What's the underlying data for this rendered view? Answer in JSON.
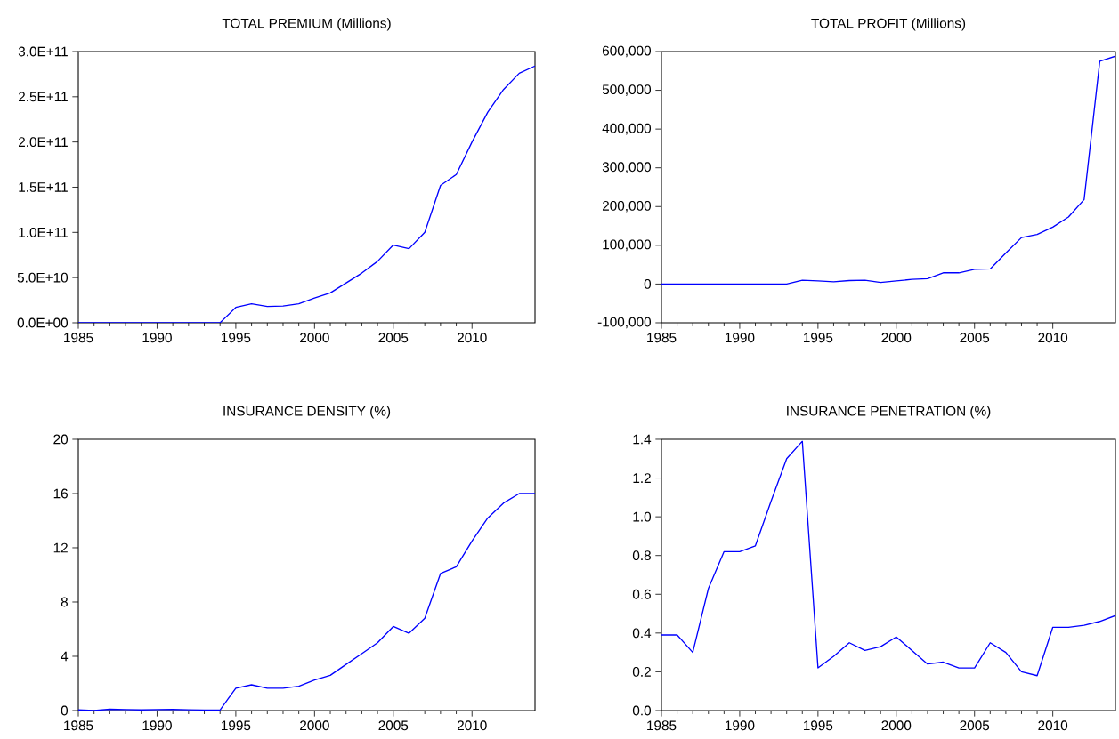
{
  "chart_data": [
    {
      "type": "line",
      "title": "TOTAL PREMIUM (Millions)",
      "color": "#0000ff",
      "x": [
        1985,
        1986,
        1987,
        1988,
        1989,
        1990,
        1991,
        1992,
        1993,
        1994,
        1995,
        1996,
        1997,
        1998,
        1999,
        2000,
        2001,
        2002,
        2003,
        2004,
        2005,
        2006,
        2007,
        2008,
        2009,
        2010,
        2011,
        2012,
        2013,
        2014
      ],
      "values": [
        0,
        0,
        0,
        0,
        0,
        0,
        0,
        0,
        0,
        0,
        17000000000,
        21000000000,
        18000000000,
        18500000000,
        21000000000,
        27500000000,
        33000000000,
        44000000000,
        55000000000,
        68000000000,
        86000000000,
        82000000000,
        100000000000,
        152000000000,
        164000000000,
        200000000000,
        233000000000,
        258000000000,
        276000000000,
        284000000000
      ],
      "xlim": [
        1985,
        2014
      ],
      "ylim": [
        0,
        300000000000
      ],
      "xticks": [
        1985,
        1990,
        1995,
        2000,
        2005,
        2010
      ],
      "yticks": [
        {
          "value": 0,
          "label": "0.0E+00"
        },
        {
          "value": 50000000000,
          "label": "5.0E+10"
        },
        {
          "value": 100000000000,
          "label": "1.0E+11"
        },
        {
          "value": 150000000000,
          "label": "1.5E+11"
        },
        {
          "value": 200000000000,
          "label": "2.0E+11"
        },
        {
          "value": 250000000000,
          "label": "2.5E+11"
        },
        {
          "value": 300000000000,
          "label": "3.0E+11"
        }
      ]
    },
    {
      "type": "line",
      "title": "TOTAL PROFIT (Millions)",
      "color": "#0000ff",
      "x": [
        1985,
        1986,
        1987,
        1988,
        1989,
        1990,
        1991,
        1992,
        1993,
        1994,
        1995,
        1996,
        1997,
        1998,
        1999,
        2000,
        2001,
        2002,
        2003,
        2004,
        2005,
        2006,
        2007,
        2008,
        2009,
        2010,
        2011,
        2012,
        2013,
        2014
      ],
      "values": [
        0,
        0,
        0,
        0,
        0,
        0,
        0,
        0,
        0,
        10000,
        8000,
        6000,
        9000,
        10000,
        4000,
        8000,
        12000,
        14000,
        29000,
        29000,
        38000,
        39000,
        80000,
        120000,
        128000,
        147000,
        173000,
        218000,
        575000,
        588000
      ],
      "xlim": [
        1985,
        2014
      ],
      "ylim": [
        -100000,
        600000
      ],
      "xticks": [
        1985,
        1990,
        1995,
        2000,
        2005,
        2010
      ],
      "yticks": [
        {
          "value": -100000,
          "label": "-100,000"
        },
        0,
        {
          "value": 100000,
          "label": "100,000"
        },
        {
          "value": 200000,
          "label": "200,000"
        },
        {
          "value": 300000,
          "label": "300,000"
        },
        {
          "value": 400000,
          "label": "400,000"
        },
        {
          "value": 500000,
          "label": "500,000"
        },
        {
          "value": 600000,
          "label": "600,000"
        }
      ]
    },
    {
      "type": "line",
      "title": "INSURANCE DENSITY (%)",
      "color": "#0000ff",
      "x": [
        1985,
        1986,
        1987,
        1988,
        1989,
        1990,
        1991,
        1992,
        1993,
        1994,
        1995,
        1996,
        1997,
        1998,
        1999,
        2000,
        2001,
        2002,
        2003,
        2004,
        2005,
        2006,
        2007,
        2008,
        2009,
        2010,
        2011,
        2012,
        2013,
        2014
      ],
      "values": [
        0.05,
        0,
        0.1,
        0.07,
        0.05,
        0.07,
        0.08,
        0.06,
        0.04,
        0.04,
        1.65,
        1.9,
        1.65,
        1.65,
        1.8,
        2.25,
        2.6,
        3.4,
        4.2,
        5.0,
        6.2,
        5.7,
        6.8,
        10.1,
        10.6,
        12.5,
        14.2,
        15.3,
        16.0,
        16.0
      ],
      "xlim": [
        1985,
        2014
      ],
      "ylim": [
        0,
        20
      ],
      "xticks": [
        1985,
        1990,
        1995,
        2000,
        2005,
        2010
      ],
      "yticks": [
        0,
        4,
        8,
        12,
        16,
        20
      ]
    },
    {
      "type": "line",
      "title": "INSURANCE PENETRATION (%)",
      "color": "#0000ff",
      "x": [
        1985,
        1986,
        1987,
        1988,
        1989,
        1990,
        1991,
        1992,
        1993,
        1994,
        1995,
        1996,
        1997,
        1998,
        1999,
        2000,
        2001,
        2002,
        2003,
        2004,
        2005,
        2006,
        2007,
        2008,
        2009,
        2010,
        2011,
        2012,
        2013,
        2014
      ],
      "values": [
        0.39,
        0.39,
        0.3,
        0.63,
        0.82,
        0.82,
        0.85,
        1.08,
        1.3,
        1.39,
        0.22,
        0.28,
        0.35,
        0.31,
        0.33,
        0.38,
        0.31,
        0.24,
        0.25,
        0.22,
        0.22,
        0.35,
        0.3,
        0.2,
        0.18,
        0.43,
        0.43,
        0.44,
        0.46,
        0.49
      ],
      "xlim": [
        1985,
        2014
      ],
      "ylim": [
        0,
        1.4
      ],
      "xticks": [
        1985,
        1990,
        1995,
        2000,
        2005,
        2010
      ],
      "yticks": [
        {
          "value": 0,
          "label": "0.0"
        },
        {
          "value": 0.2,
          "label": "0.2"
        },
        {
          "value": 0.4,
          "label": "0.4"
        },
        {
          "value": 0.6,
          "label": "0.6"
        },
        {
          "value": 0.8,
          "label": "0.8"
        },
        {
          "value": 1.0,
          "label": "1.0"
        },
        {
          "value": 1.2,
          "label": "1.2"
        },
        {
          "value": 1.4,
          "label": "1.4"
        }
      ]
    }
  ]
}
